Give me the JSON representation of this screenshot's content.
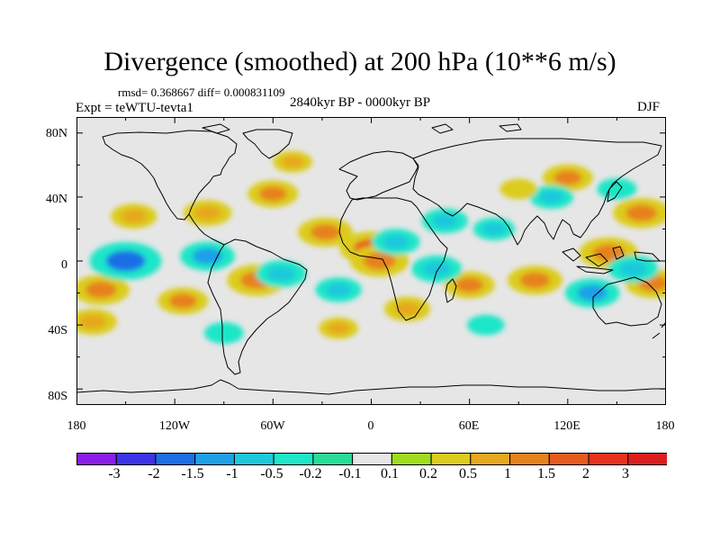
{
  "figure": {
    "title": "Divergence (smoothed) at 200 hPa (10**6 m/s)",
    "stats": "rmsd= 0.368667 diff= 0.000831109",
    "period": "2840kyr BP - 0000kyr BP",
    "experiment": "Expt = teWTU-tevta1",
    "season": "DJF"
  },
  "axes": {
    "lat_labels": [
      "80N",
      "40N",
      "0",
      "40S",
      "80S"
    ],
    "lon_labels": [
      "180",
      "120W",
      "60W",
      "0",
      "60E",
      "120E",
      "180"
    ]
  },
  "colorbar": {
    "labels": [
      "-3",
      "-2",
      "-1.5",
      "-1",
      "-0.5",
      "-0.2",
      "-0.1",
      "0.1",
      "0.2",
      "0.5",
      "1",
      "1.5",
      "2",
      "3"
    ],
    "colors": [
      "#8a1ee8",
      "#3c32e6",
      "#1e6ee6",
      "#1ea0e6",
      "#1ec8dc",
      "#1ee6c8",
      "#28dc96",
      "#e6e6e6",
      "#a0dc1e",
      "#dccc1e",
      "#e6a81e",
      "#e6821e",
      "#e65a1e",
      "#e6321e",
      "#dc1e1e"
    ]
  },
  "chart_data": {
    "type": "heatmap",
    "title": "Divergence (smoothed) at 200 hPa (10**6 m/s)",
    "variable": "divergence at 200 hPa",
    "units": "10**6 m/s",
    "season": "DJF",
    "projection": "cylindrical equidistant",
    "lon_range": [
      -180,
      180
    ],
    "lat_range": [
      -90,
      90
    ],
    "contour_levels": [
      -3,
      -2,
      -1.5,
      -1,
      -0.5,
      -0.2,
      -0.1,
      0.1,
      0.2,
      0.5,
      1,
      1.5,
      2,
      3
    ],
    "rmsd": 0.368667,
    "diff": 0.000831109,
    "features": [
      {
        "lon": -145,
        "lat": 28,
        "value": 0.8
      },
      {
        "lon": -100,
        "lat": 30,
        "value": 0.9
      },
      {
        "lon": -60,
        "lat": 42,
        "value": 1.0
      },
      {
        "lon": -48,
        "lat": 62,
        "value": 0.5
      },
      {
        "lon": -28,
        "lat": 18,
        "value": 1.2
      },
      {
        "lon": 0,
        "lat": 8,
        "value": 1.6
      },
      {
        "lon": 5,
        "lat": 0,
        "value": 1.4
      },
      {
        "lon": 120,
        "lat": 52,
        "value": 1.0
      },
      {
        "lon": 165,
        "lat": 30,
        "value": 1.3
      },
      {
        "lon": 145,
        "lat": 5,
        "value": 1.4
      },
      {
        "lon": 172,
        "lat": -14,
        "value": 1.2
      },
      {
        "lon": -165,
        "lat": -18,
        "value": 1.3
      },
      {
        "lon": -115,
        "lat": -25,
        "value": 1.0
      },
      {
        "lon": -70,
        "lat": -12,
        "value": 1.4
      },
      {
        "lon": 22,
        "lat": -30,
        "value": 0.8
      },
      {
        "lon": 60,
        "lat": -15,
        "value": 1.0
      },
      {
        "lon": 100,
        "lat": -12,
        "value": 1.2
      },
      {
        "lon": -150,
        "lat": 0,
        "value": -2.0
      },
      {
        "lon": -100,
        "lat": 3,
        "value": -1.2
      },
      {
        "lon": -55,
        "lat": -8,
        "value": -1.0
      },
      {
        "lon": -20,
        "lat": -18,
        "value": -0.8
      },
      {
        "lon": 15,
        "lat": 12,
        "value": -0.9
      },
      {
        "lon": 40,
        "lat": -5,
        "value": -1.0
      },
      {
        "lon": 45,
        "lat": 25,
        "value": -0.8
      },
      {
        "lon": 75,
        "lat": 20,
        "value": -0.6
      },
      {
        "lon": 110,
        "lat": 40,
        "value": -0.7
      },
      {
        "lon": 135,
        "lat": -20,
        "value": -1.2
      },
      {
        "lon": 160,
        "lat": -5,
        "value": -1.0
      },
      {
        "lon": -170,
        "lat": -38,
        "value": 0.9
      },
      {
        "lon": -90,
        "lat": -45,
        "value": -0.5
      },
      {
        "lon": -20,
        "lat": -42,
        "value": 0.5
      },
      {
        "lon": 90,
        "lat": 45,
        "value": 0.4
      },
      {
        "lon": 150,
        "lat": 45,
        "value": -0.5
      },
      {
        "lon": 70,
        "lat": -40,
        "value": -0.4
      }
    ]
  }
}
